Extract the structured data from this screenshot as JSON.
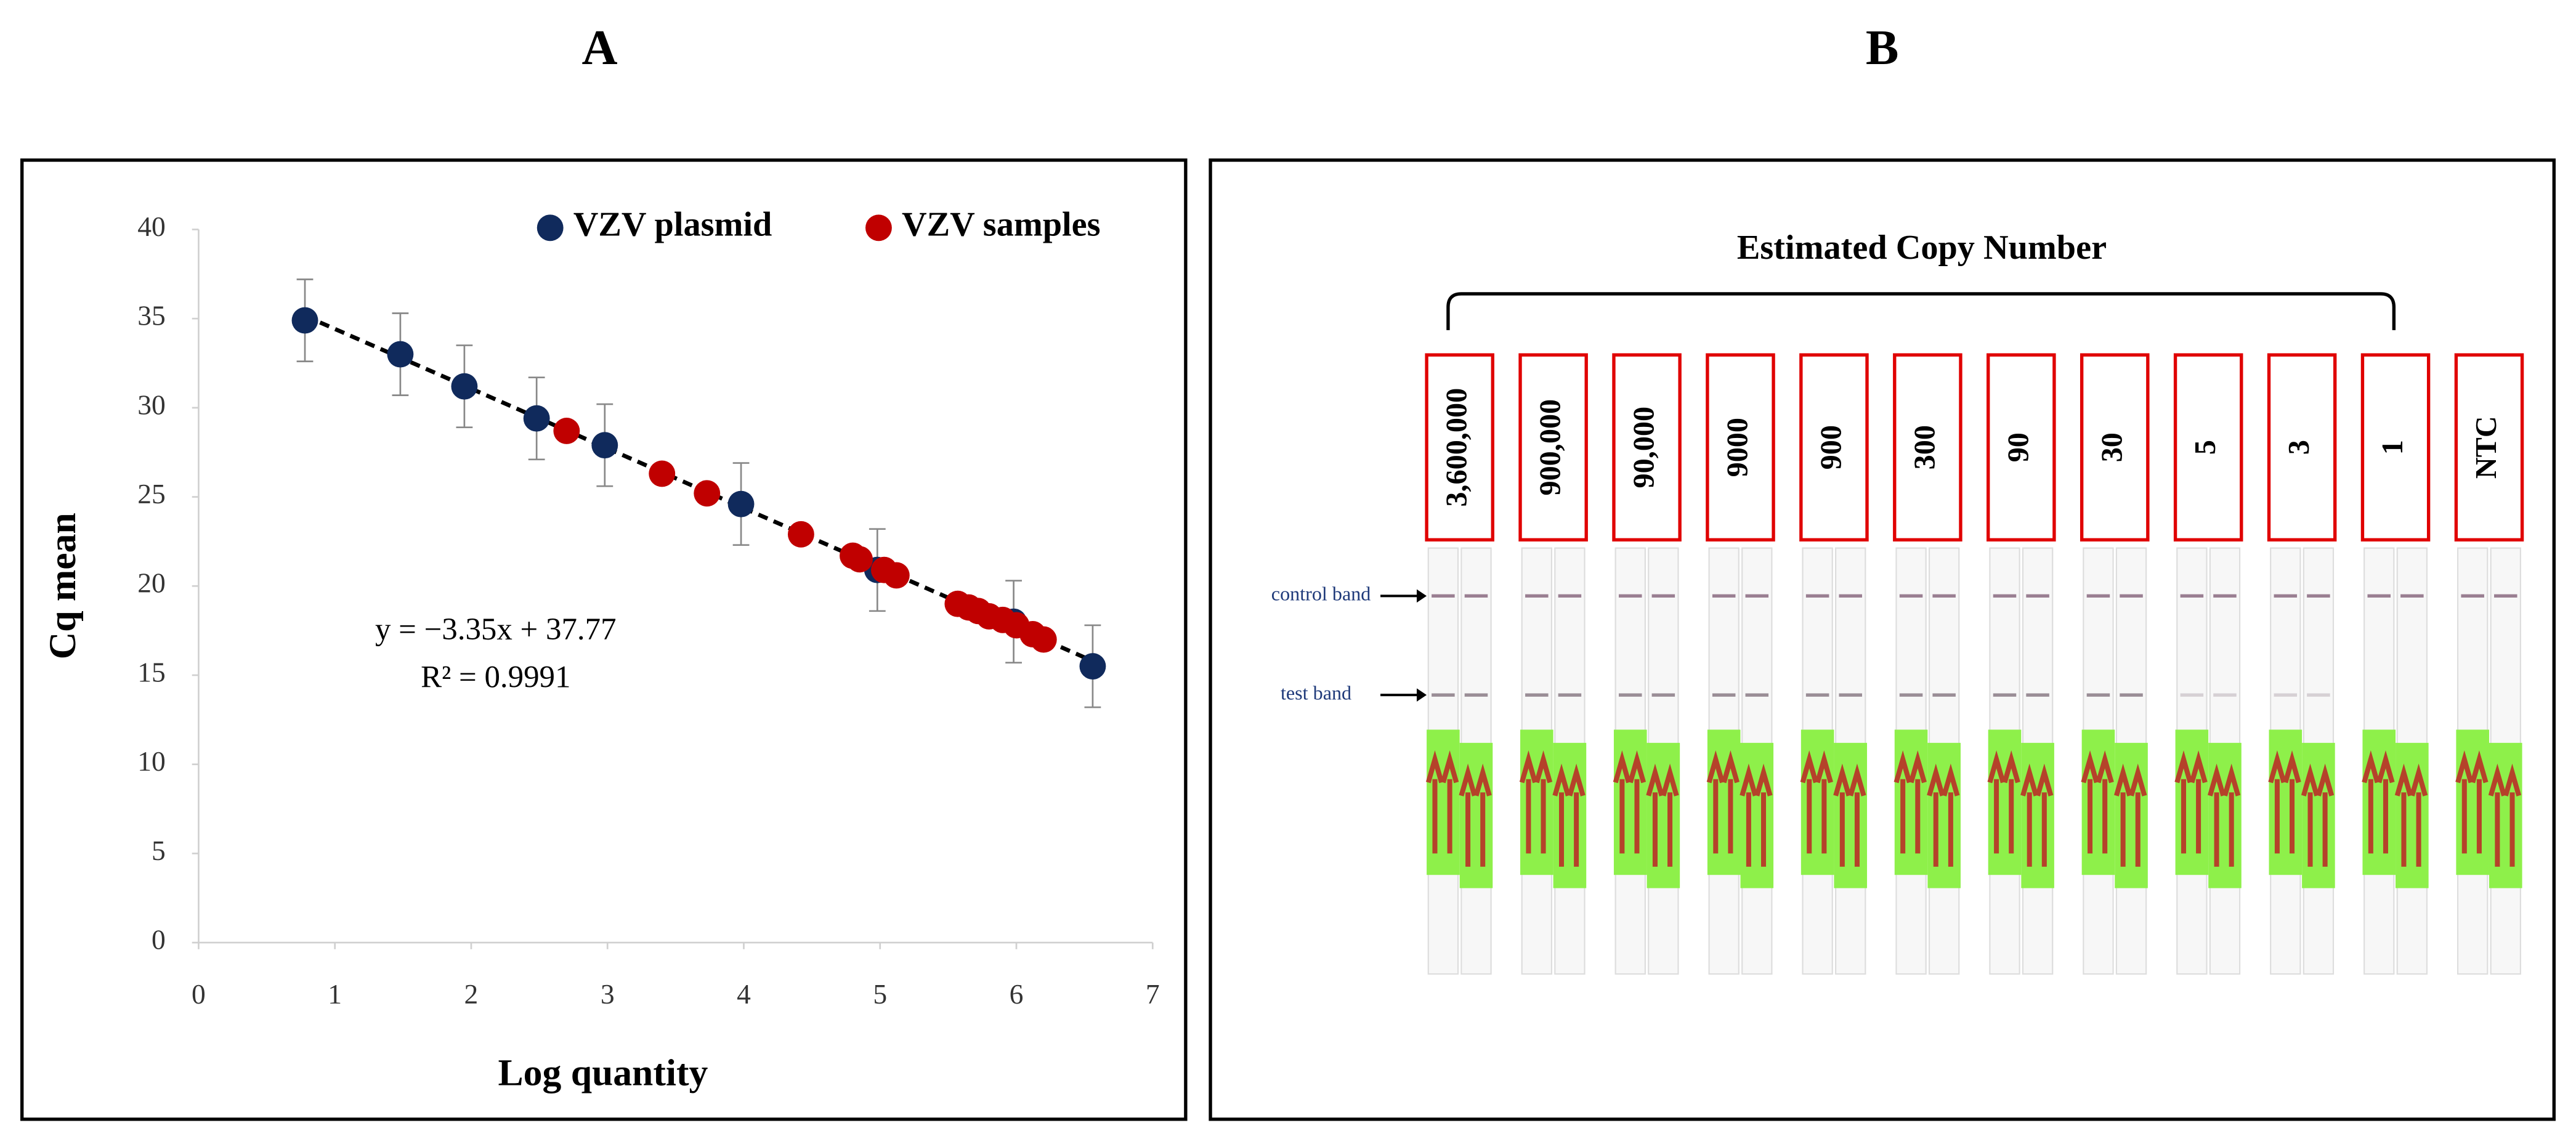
{
  "chart_data": {
    "type": "scatter",
    "panel_label": "A",
    "xlabel": "Log quantity",
    "ylabel": "Cq mean",
    "xlim": [
      0,
      7
    ],
    "xticks": [
      0,
      1,
      2,
      3,
      4,
      5,
      6,
      7
    ],
    "ylim": [
      0,
      40
    ],
    "yticks": [
      0,
      5,
      10,
      15,
      20,
      25,
      30,
      35,
      40
    ],
    "legend": "top-right",
    "series": [
      {
        "name": "VZV plasmid",
        "color": "#102a5c",
        "x": [
          0.78,
          1.48,
          1.95,
          2.48,
          2.98,
          3.98,
          4.98,
          5.98,
          6.56
        ],
        "values": [
          34.9,
          33.0,
          31.2,
          29.4,
          27.9,
          24.6,
          20.9,
          18.0,
          15.5
        ],
        "errors": [
          2.3,
          2.3,
          2.3,
          2.3,
          2.3,
          2.3,
          2.3,
          2.3,
          2.3
        ]
      },
      {
        "name": "VZV samples",
        "color": "#c00000",
        "x": [
          2.7,
          3.4,
          3.73,
          4.42,
          4.8,
          4.85,
          5.03,
          5.12,
          5.57,
          5.65,
          5.72,
          5.8,
          5.9,
          6.0,
          6.12,
          6.2
        ],
        "values": [
          28.7,
          26.3,
          25.2,
          22.9,
          21.7,
          21.5,
          20.9,
          20.6,
          19.0,
          18.8,
          18.6,
          18.3,
          18.1,
          17.8,
          17.3,
          17.0
        ]
      }
    ],
    "trendline": {
      "slope": -3.35,
      "intercept": 37.77,
      "equation": "y = −3.35x + 37.77",
      "r2_label": "R² = 0.9991"
    }
  },
  "photo": {
    "panel_label": "B",
    "title": "Estimated Copy Number",
    "lanes": [
      "3,600,000",
      "900,000",
      "90,000",
      "9000",
      "900",
      "300",
      "90",
      "30",
      "5",
      "3",
      "1",
      "NTC"
    ],
    "control_label": "control band",
    "test_label": "test band"
  }
}
